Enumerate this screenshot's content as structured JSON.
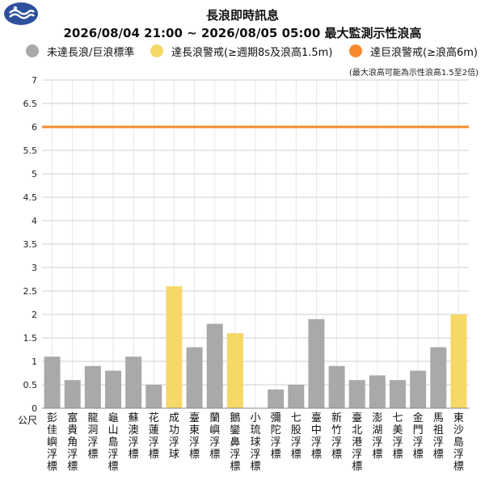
{
  "colors": {
    "normal": "#a9a9a9",
    "long_wave_warning": "#f5d868",
    "huge_wave_warning": "#f98b2e",
    "logo": "#2e4f9c"
  },
  "logo": {
    "icon": "cwa-logo-icon"
  },
  "chart_data": {
    "type": "bar",
    "title": "長浪即時訊息",
    "subtitle": "2026/08/04 21:00 ~ 2026/08/05 05:00 最大監測示性浪高",
    "note": "(最大浪高可能為示性浪高1.5至2倍)",
    "ylabel": "公尺",
    "ylim": [
      0,
      7
    ],
    "yticks": [
      "0",
      "0.5",
      "1",
      "1.5",
      "2",
      "2.5",
      "3",
      "3.5",
      "4",
      "4.5",
      "5",
      "5.5",
      "6",
      "6.5",
      "7"
    ],
    "grid": true,
    "legend_position": "top",
    "legend": [
      {
        "label": "未達長浪/巨浪標準",
        "color": "#a9a9a9"
      },
      {
        "label": "達長浪警戒(≥週期8s及浪高1.5m)",
        "color": "#f5d868"
      },
      {
        "label": "達巨浪警戒(≥浪高6m)",
        "color": "#f98b2e"
      }
    ],
    "threshold_line": {
      "value": 6,
      "color": "#f98b2e"
    },
    "categories": [
      "彭佳嶼浮標",
      "富貴角浮標",
      "龍洞浮標",
      "龜山島浮標",
      "蘇澳浮標",
      "花蓮浮標",
      "成功浮球",
      "臺東浮標",
      "蘭嶼浮標",
      "鵝鑾鼻浮標",
      "小琉球浮標",
      "彌陀浮標",
      "七股浮標",
      "臺中浮標",
      "新竹浮標",
      "臺北港浮標",
      "澎湖浮標",
      "七美浮標",
      "金門浮標",
      "馬祖浮標",
      "東沙島浮標"
    ],
    "values": [
      1.1,
      0.6,
      0.9,
      0.8,
      1.1,
      0.5,
      2.6,
      1.3,
      1.8,
      1.6,
      null,
      0.4,
      0.5,
      1.9,
      0.9,
      0.6,
      0.7,
      0.6,
      0.8,
      1.3,
      2.0
    ],
    "status": [
      "normal",
      "normal",
      "normal",
      "normal",
      "normal",
      "normal",
      "long",
      "normal",
      "normal",
      "long",
      "none",
      "normal",
      "normal",
      "normal",
      "normal",
      "normal",
      "normal",
      "normal",
      "normal",
      "normal",
      "long"
    ]
  }
}
